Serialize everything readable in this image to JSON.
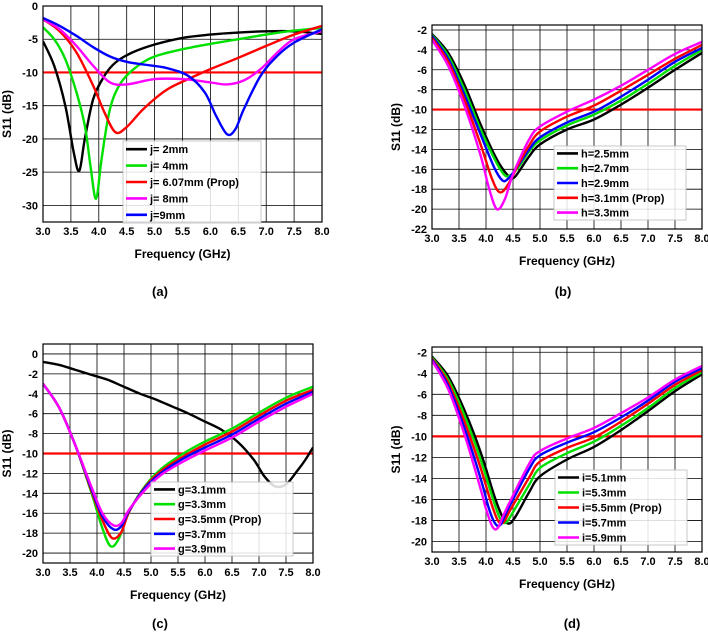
{
  "chart_data": [
    {
      "type": "line",
      "caption": "(a)",
      "xlabel": "Frequency (GHz)",
      "ylabel": "S11 (dB)",
      "xlim": [
        3.0,
        8.0
      ],
      "ylim": [
        -32.5,
        0
      ],
      "xticks": [
        "3.0",
        "3.5",
        "4.0",
        "4.5",
        "5.0",
        "5.5",
        "6.0",
        "6.5",
        "7.0",
        "7.5",
        "8.0"
      ],
      "xtick_values": [
        3.0,
        3.5,
        4.0,
        4.5,
        5.0,
        5.5,
        6.0,
        6.5,
        7.0,
        7.5,
        8.0
      ],
      "yticks": [
        "0",
        "-5",
        "-10",
        "-15",
        "-20",
        "-25",
        "-30"
      ],
      "ytick_values": [
        0,
        -5,
        -10,
        -15,
        -20,
        -25,
        -30
      ],
      "reference_line": -10,
      "series": [
        {
          "name": "j= 2mm",
          "color": "#000000",
          "x": [
            3.0,
            3.2,
            3.4,
            3.55,
            3.65,
            3.75,
            3.9,
            4.1,
            4.3,
            4.6,
            5.0,
            5.5,
            6.0,
            6.5,
            7.0,
            7.5,
            8.0
          ],
          "y": [
            -5.3,
            -9,
            -15,
            -22,
            -24.8,
            -20,
            -14,
            -10.5,
            -8.5,
            -7,
            -5.8,
            -4.8,
            -4.3,
            -4,
            -3.8,
            -3.8,
            -4.2
          ]
        },
        {
          "name": "j= 4mm",
          "color": "#00e000",
          "x": [
            3.0,
            3.2,
            3.4,
            3.6,
            3.75,
            3.85,
            3.95,
            4.05,
            4.2,
            4.4,
            4.7,
            5.0,
            5.5,
            6.0,
            6.5,
            7.0,
            7.5,
            8.0
          ],
          "y": [
            -3.2,
            -5,
            -8,
            -13,
            -18,
            -24,
            -29,
            -23,
            -15.5,
            -11.5,
            -9,
            -7.6,
            -6.5,
            -5.7,
            -5,
            -4.3,
            -3.7,
            -3.3
          ]
        },
        {
          "name": "j= 6.07mm (Prop)",
          "color": "#ff0000",
          "x": [
            3.0,
            3.3,
            3.6,
            3.9,
            4.1,
            4.3,
            4.5,
            4.8,
            5.2,
            5.6,
            6.0,
            6.5,
            7.0,
            7.5,
            8.0
          ],
          "y": [
            -2,
            -3.8,
            -7,
            -12,
            -16,
            -19,
            -18.2,
            -15.5,
            -12.7,
            -11,
            -9.5,
            -7.8,
            -6,
            -4.3,
            -3
          ]
        },
        {
          "name": "j= 8mm",
          "color": "#ff00ff",
          "x": [
            3.0,
            3.3,
            3.6,
            3.9,
            4.2,
            4.5,
            5.0,
            5.5,
            6.0,
            6.3,
            6.6,
            6.9,
            7.2,
            7.5,
            8.0
          ],
          "y": [
            -2,
            -3.5,
            -6,
            -9,
            -11.5,
            -11.8,
            -11,
            -11,
            -11.5,
            -11.8,
            -11.2,
            -9.5,
            -7,
            -5,
            -3.8
          ]
        },
        {
          "name": "j=9mm",
          "color": "#0000ff",
          "x": [
            3.0,
            3.3,
            3.6,
            3.9,
            4.2,
            4.5,
            4.8,
            5.2,
            5.6,
            5.9,
            6.1,
            6.3,
            6.45,
            6.6,
            6.9,
            7.2,
            7.5,
            8.0
          ],
          "y": [
            -1.8,
            -3,
            -4.5,
            -6.2,
            -7.6,
            -8.4,
            -8.8,
            -9.3,
            -10.5,
            -13,
            -16.5,
            -19.3,
            -18.5,
            -15.5,
            -10.5,
            -7.5,
            -5.5,
            -3.5
          ]
        }
      ]
    },
    {
      "type": "line",
      "caption": "(b)",
      "xlabel": "Frequency (GHz)",
      "ylabel": "S11 (dB)",
      "xlim": [
        3.0,
        8.0
      ],
      "ylim": [
        -22,
        -1.5
      ],
      "xticks": [
        "3.0",
        "3.5",
        "4.0",
        "4.5",
        "5.0",
        "5.5",
        "6.0",
        "6.5",
        "7.0",
        "7.5",
        "8.0"
      ],
      "xtick_values": [
        3.0,
        3.5,
        4.0,
        4.5,
        5.0,
        5.5,
        6.0,
        6.5,
        7.0,
        7.5,
        8.0
      ],
      "yticks": [
        "-2",
        "-4",
        "-6",
        "-8",
        "-10",
        "-12",
        "-14",
        "-16",
        "-18",
        "-20",
        "-22"
      ],
      "ytick_values": [
        -2,
        -4,
        -6,
        -8,
        -10,
        -12,
        -14,
        -16,
        -18,
        -20,
        -22
      ],
      "reference_line": -10,
      "series": [
        {
          "name": "h=2.5mm",
          "color": "#000000",
          "x": [
            3.0,
            3.3,
            3.6,
            3.9,
            4.2,
            4.4,
            4.5,
            4.6,
            4.8,
            5.0,
            5.5,
            6.0,
            6.5,
            7.0,
            7.5,
            8.0
          ],
          "y": [
            -2.4,
            -4.3,
            -7.5,
            -11.5,
            -15,
            -16.6,
            -16.9,
            -16.3,
            -14.7,
            -13.5,
            -12,
            -11,
            -9.5,
            -7.8,
            -6,
            -4.3
          ]
        },
        {
          "name": "h=2.7mm",
          "color": "#00e000",
          "x": [
            3.0,
            3.3,
            3.6,
            3.9,
            4.2,
            4.35,
            4.45,
            4.6,
            4.8,
            5.0,
            5.5,
            6.0,
            6.5,
            7.0,
            7.5,
            8.0
          ],
          "y": [
            -2.5,
            -4.6,
            -8,
            -12,
            -15.4,
            -16.6,
            -16.6,
            -15.8,
            -14.2,
            -13.1,
            -11.6,
            -10.5,
            -9.1,
            -7.4,
            -5.6,
            -4
          ]
        },
        {
          "name": "h=2.9mm",
          "color": "#0000ff",
          "x": [
            3.0,
            3.3,
            3.6,
            3.9,
            4.15,
            4.3,
            4.4,
            4.55,
            4.8,
            5.0,
            5.5,
            6.0,
            6.5,
            7.0,
            7.5,
            8.0
          ],
          "y": [
            -2.6,
            -4.9,
            -8.5,
            -12.5,
            -15.8,
            -17.1,
            -17,
            -16,
            -14,
            -12.8,
            -11.3,
            -10.2,
            -8.7,
            -7,
            -5.2,
            -3.8
          ]
        },
        {
          "name": "h=3.1mm (Prop)",
          "color": "#ff0000",
          "x": [
            3.0,
            3.3,
            3.6,
            3.9,
            4.1,
            4.25,
            4.4,
            4.6,
            4.8,
            5.0,
            5.5,
            6.0,
            6.5,
            7.0,
            7.5,
            8.0
          ],
          "y": [
            -2.8,
            -5.2,
            -9,
            -13.5,
            -16.8,
            -18.3,
            -17.6,
            -15.5,
            -13.6,
            -12.2,
            -10.7,
            -9.6,
            -8.1,
            -6.5,
            -4.9,
            -3.5
          ]
        },
        {
          "name": "h=3.3mm",
          "color": "#ff00ff",
          "x": [
            3.0,
            3.3,
            3.6,
            3.9,
            4.05,
            4.2,
            4.35,
            4.5,
            4.8,
            5.0,
            5.5,
            6.0,
            6.5,
            7.0,
            7.5,
            8.0
          ],
          "y": [
            -3,
            -5.6,
            -9.6,
            -14.6,
            -17.8,
            -20,
            -19,
            -16.5,
            -13,
            -11.7,
            -10.2,
            -9,
            -7.6,
            -6,
            -4.4,
            -3.2
          ]
        }
      ]
    },
    {
      "type": "line",
      "caption": "(c)",
      "xlabel": "Frequency (GHz)",
      "ylabel": "S11 (dB)",
      "xlim": [
        3.0,
        8.0
      ],
      "ylim": [
        -21,
        1
      ],
      "xticks": [
        "3.0",
        "3.5",
        "4.0",
        "4.5",
        "5.0",
        "5.5",
        "6.0",
        "6.5",
        "7.0",
        "7.5",
        "8.0"
      ],
      "xtick_values": [
        3.0,
        3.5,
        4.0,
        4.5,
        5.0,
        5.5,
        6.0,
        6.5,
        7.0,
        7.5,
        8.0
      ],
      "yticks": [
        "0",
        "-2",
        "-4",
        "-6",
        "-8",
        "-10",
        "-12",
        "-14",
        "-16",
        "-18",
        "-20"
      ],
      "ytick_values": [
        0,
        -2,
        -4,
        -6,
        -8,
        -10,
        -12,
        -14,
        -16,
        -18,
        -20
      ],
      "reference_line": -10,
      "series": [
        {
          "name": "g=3.1mm",
          "color": "#000000",
          "x": [
            3.0,
            3.3,
            3.6,
            3.9,
            4.2,
            4.5,
            4.8,
            5.1,
            5.4,
            5.7,
            6.0,
            6.3,
            6.6,
            6.9,
            7.1,
            7.3,
            7.5,
            7.7,
            7.85,
            8.0
          ],
          "y": [
            -0.8,
            -1.1,
            -1.6,
            -2.1,
            -2.6,
            -3.3,
            -4,
            -4.6,
            -5.3,
            -6,
            -6.8,
            -7.6,
            -8.8,
            -10.6,
            -12.3,
            -13.3,
            -13.1,
            -11.8,
            -10.7,
            -9.4
          ]
        },
        {
          "name": "g=3.3mm",
          "color": "#00e000",
          "x": [
            3.0,
            3.3,
            3.6,
            3.9,
            4.1,
            4.25,
            4.4,
            4.6,
            4.9,
            5.2,
            5.6,
            6.0,
            6.5,
            7.0,
            7.5,
            8.0
          ],
          "y": [
            -3,
            -5.4,
            -9.2,
            -14,
            -17.5,
            -19.3,
            -18.6,
            -15.8,
            -13.2,
            -11.5,
            -10,
            -8.8,
            -7.5,
            -5.9,
            -4.4,
            -3.3
          ]
        },
        {
          "name": "g=3.5mm (Prop)",
          "color": "#ff0000",
          "x": [
            3.0,
            3.3,
            3.6,
            3.9,
            4.1,
            4.28,
            4.45,
            4.6,
            4.9,
            5.2,
            5.6,
            6.0,
            6.5,
            7.0,
            7.5,
            8.0
          ],
          "y": [
            -3,
            -5.4,
            -9.2,
            -13.8,
            -16.7,
            -18.5,
            -17.9,
            -15.8,
            -13.3,
            -11.7,
            -10.3,
            -9.1,
            -7.8,
            -6.2,
            -4.7,
            -3.6
          ]
        },
        {
          "name": "g=3.7mm",
          "color": "#0000ff",
          "x": [
            3.0,
            3.3,
            3.6,
            3.9,
            4.1,
            4.3,
            4.45,
            4.6,
            4.9,
            5.2,
            5.6,
            6.0,
            6.5,
            7.0,
            7.5,
            8.0
          ],
          "y": [
            -3,
            -5.4,
            -9.2,
            -13.6,
            -16.3,
            -17.6,
            -17.3,
            -15.7,
            -13.4,
            -11.9,
            -10.5,
            -9.4,
            -8.1,
            -6.5,
            -5,
            -3.8
          ]
        },
        {
          "name": "g=3.9mm",
          "color": "#ff00ff",
          "x": [
            3.0,
            3.3,
            3.6,
            3.9,
            4.1,
            4.3,
            4.45,
            4.6,
            4.9,
            5.2,
            5.6,
            6.0,
            6.5,
            7.0,
            7.5,
            8.0
          ],
          "y": [
            -3,
            -5.4,
            -9.2,
            -13.4,
            -16,
            -17.2,
            -17,
            -15.6,
            -13.6,
            -12.1,
            -10.8,
            -9.7,
            -8.4,
            -6.8,
            -5.3,
            -4
          ]
        }
      ]
    },
    {
      "type": "line",
      "caption": "(d)",
      "xlabel": "Frequency (GHz)",
      "ylabel": "S11 (dB)",
      "xlim": [
        3.0,
        8.0
      ],
      "ylim": [
        -21,
        -1.5
      ],
      "xticks": [
        "3.0",
        "3.5",
        "4.0",
        "4.5",
        "5.0",
        "5.5",
        "6.0",
        "6.5",
        "7.0",
        "7.5",
        "8.0"
      ],
      "xtick_values": [
        3.0,
        3.5,
        4.0,
        4.5,
        5.0,
        5.5,
        6.0,
        6.5,
        7.0,
        7.5,
        8.0
      ],
      "yticks": [
        "-2",
        "-4",
        "-6",
        "-8",
        "-10",
        "-12",
        "-14",
        "-16",
        "-18",
        "-20"
      ],
      "ytick_values": [
        -2,
        -4,
        -6,
        -8,
        -10,
        -12,
        -14,
        -16,
        -18,
        -20
      ],
      "reference_line": -10,
      "series": [
        {
          "name": "i=5.1mm",
          "color": "#000000",
          "x": [
            3.0,
            3.3,
            3.6,
            3.9,
            4.15,
            4.3,
            4.42,
            4.55,
            4.8,
            5.0,
            5.5,
            6.0,
            6.5,
            7.0,
            7.5,
            8.0
          ],
          "y": [
            -2.4,
            -4.3,
            -7.5,
            -11.5,
            -15.6,
            -17.6,
            -18.3,
            -17.6,
            -15.3,
            -13.8,
            -12.2,
            -11,
            -9.4,
            -7.6,
            -5.7,
            -4.1
          ]
        },
        {
          "name": "i=5.3mm",
          "color": "#00e000",
          "x": [
            3.0,
            3.3,
            3.6,
            3.9,
            4.15,
            4.27,
            4.37,
            4.5,
            4.8,
            5.0,
            5.5,
            6.0,
            6.5,
            7.0,
            7.5,
            8.0
          ],
          "y": [
            -2.5,
            -4.6,
            -8,
            -12.2,
            -16.3,
            -17.9,
            -18.2,
            -17.2,
            -14.6,
            -13,
            -11.6,
            -10.5,
            -9,
            -7.3,
            -5.4,
            -3.9
          ]
        },
        {
          "name": "i=5.5mm (Prop)",
          "color": "#ff0000",
          "x": [
            3.0,
            3.3,
            3.6,
            3.9,
            4.1,
            4.22,
            4.32,
            4.45,
            4.8,
            5.0,
            5.5,
            6.0,
            6.5,
            7.0,
            7.5,
            8.0
          ],
          "y": [
            -2.6,
            -4.9,
            -8.6,
            -13,
            -16.4,
            -18,
            -18.2,
            -17,
            -13.9,
            -12.4,
            -11.1,
            -10.1,
            -8.6,
            -6.9,
            -5.1,
            -3.7
          ]
        },
        {
          "name": "i=5.7mm",
          "color": "#0000ff",
          "x": [
            3.0,
            3.3,
            3.6,
            3.9,
            4.05,
            4.17,
            4.27,
            4.4,
            4.8,
            5.0,
            5.5,
            6.0,
            6.5,
            7.0,
            7.5,
            8.0
          ],
          "y": [
            -2.7,
            -5.2,
            -9.2,
            -14,
            -16.8,
            -18.3,
            -18.4,
            -17,
            -13.1,
            -11.8,
            -10.6,
            -9.6,
            -8.2,
            -6.6,
            -4.8,
            -3.5
          ]
        },
        {
          "name": "i=5.9mm",
          "color": "#ff00ff",
          "x": [
            3.0,
            3.3,
            3.6,
            3.9,
            4.0,
            4.12,
            4.22,
            4.35,
            4.8,
            5.0,
            5.5,
            6.0,
            6.5,
            7.0,
            7.5,
            8.0
          ],
          "y": [
            -2.8,
            -5.5,
            -9.8,
            -15,
            -16.9,
            -18.6,
            -18.7,
            -17.2,
            -12.6,
            -11.4,
            -10.2,
            -9.2,
            -7.8,
            -6.3,
            -4.6,
            -3.3
          ]
        }
      ]
    }
  ]
}
